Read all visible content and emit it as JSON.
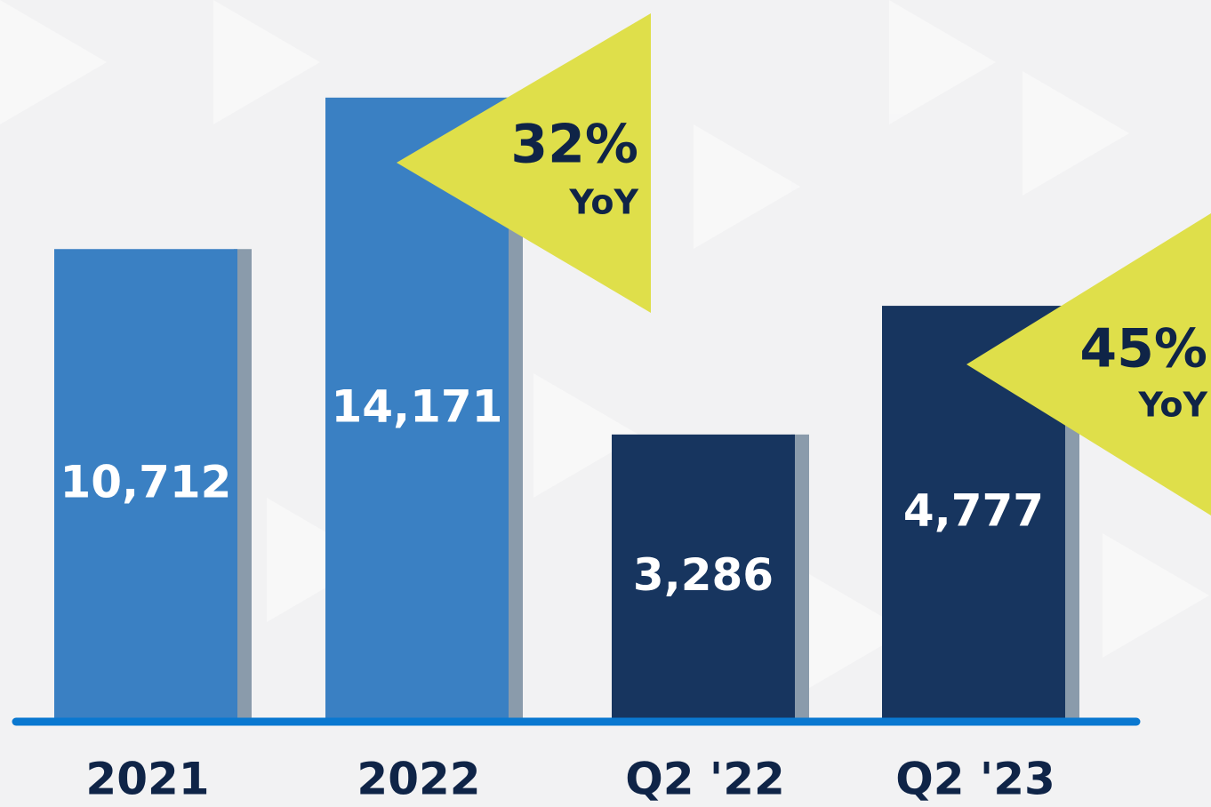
{
  "chart_data": [
    {
      "type": "bar",
      "categories": [
        "2021",
        "2022"
      ],
      "values": [
        10712,
        14171
      ],
      "value_labels": [
        "10,712",
        "14,171"
      ],
      "color": "#3a80c3",
      "ylim": [
        0,
        16400
      ],
      "annotation": "32%",
      "annotation_sub": "YoY"
    },
    {
      "type": "bar",
      "categories": [
        "Q2 '22",
        "Q2 '23"
      ],
      "values": [
        3286,
        4777
      ],
      "value_labels": [
        "3,286",
        "4,777"
      ],
      "color": "#17355f",
      "ylim": [
        0,
        8320
      ],
      "annotation": "45%",
      "annotation_sub": "YoY"
    }
  ]
}
